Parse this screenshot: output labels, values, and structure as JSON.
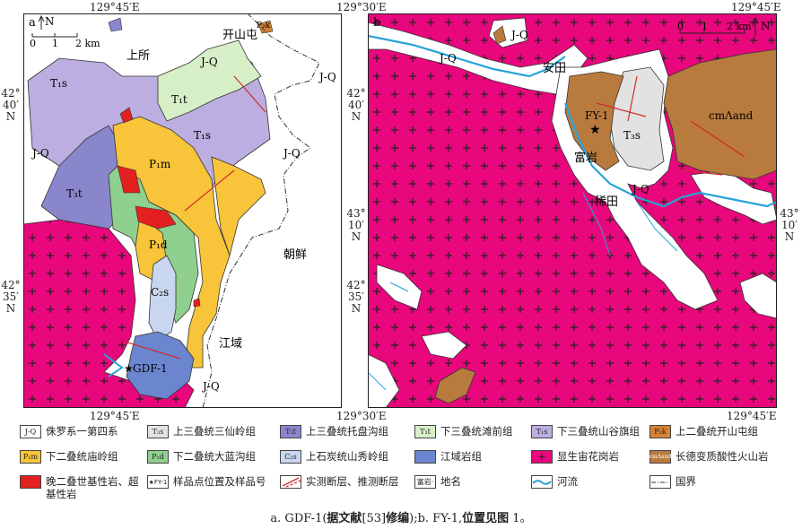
{
  "panel_a": {
    "label": "a",
    "top_coord": "129°45′E",
    "bottom_coord": "129°45′E",
    "left_coords": [
      {
        "deg": "42°",
        "min": "40′",
        "hem": "N"
      },
      {
        "deg": "42°",
        "min": "35′",
        "hem": "N"
      }
    ],
    "scale": {
      "zero": "0",
      "one": "1",
      "two": "2 km"
    },
    "north": "N",
    "places": {
      "shangsuo": "上所",
      "kaishantun": "开山屯",
      "chaoxian": "朝鲜",
      "jiangyu": "江域"
    },
    "units": {
      "jq": "J-Q",
      "t1s": "T₁s",
      "t1t": "T₁t",
      "t3t": "T₃t",
      "p1m": "P₁m",
      "p1d": "P₁d",
      "c2s": "C₂s",
      "p2k": "P₂k"
    },
    "sample": "GDF-1"
  },
  "panel_b": {
    "label": "b",
    "top_left_coord": "129°30′E",
    "top_right_coord": "129°45′E",
    "bottom_left_coord": "129°30′E",
    "bottom_right_coord": "129°45′E",
    "left_coords": [
      {
        "deg": "42°",
        "min": "40′",
        "hem": "N"
      },
      {
        "deg": "42°",
        "min": "35′",
        "hem": "N"
      }
    ],
    "right_coord": {
      "deg": "43°",
      "min": "10′",
      "hem": "N"
    },
    "left_mid_coord": {
      "deg": "43°",
      "min": "10′",
      "hem": "N"
    },
    "scale": {
      "zero": "0",
      "one": "1",
      "two": "2 km"
    },
    "north": "N",
    "places": {
      "antian": "安田",
      "fuyan": "富岩",
      "xitian": "稀田"
    },
    "units": {
      "jq": "J-Q",
      "t3s": "T₃s",
      "cmand": "cmΛand"
    },
    "sample": "FY-1"
  },
  "legend": {
    "items": [
      {
        "code": "J-Q",
        "label": "侏罗系一第四系",
        "color": "#ffffff"
      },
      {
        "code": "T₃s",
        "label": "上三叠统三仙岭组",
        "color": "#e2e2e2"
      },
      {
        "code": "T₃t",
        "label": "上三叠统托盘沟组",
        "color": "#8a86cc"
      },
      {
        "code": "T₁t",
        "label": "下三叠统滩前组",
        "color": "#d6efc6"
      },
      {
        "code": "T₁s",
        "label": "下三叠统山谷旗组",
        "color": "#bcaee0"
      },
      {
        "code": "P₂k",
        "label": "上二叠统开山屯组",
        "color": "#d68232"
      },
      {
        "code": "P₁m",
        "label": "下二叠统庙岭组",
        "color": "#f7c43a"
      },
      {
        "code": "P₁d",
        "label": "下二叠统大蓝沟组",
        "color": "#8fd08f"
      },
      {
        "code": "C₂s",
        "label": "上石炭统山秀岭组",
        "color": "#c8d6f0"
      },
      {
        "code": "",
        "label": "江域岩组",
        "color": "#6b86cf"
      },
      {
        "code": "+",
        "label": "显生宙花岗岩",
        "color": "#e8077c"
      },
      {
        "code": "cmΛand",
        "label": "长德变质酸性火山岩",
        "color": "#b97a3e"
      },
      {
        "code": "",
        "label": "晚二叠世基性岩、超基性岩",
        "color": "#e32020"
      },
      {
        "code": "★FY-1",
        "label": "样品点位置及样品号",
        "color": "#ffffff"
      },
      {
        "code": "",
        "label": "实测断层、推测断层",
        "color": "#ffffff"
      },
      {
        "code": "富岩·",
        "label": "地名",
        "color": "#ffffff"
      },
      {
        "code": "",
        "label": "河流",
        "color": "#ffffff"
      },
      {
        "code": "",
        "label": "国界",
        "color": "#ffffff"
      }
    ]
  },
  "caption": {
    "pre": "a. GDF-1(",
    "bold1": "据文献",
    "ref": "[53]",
    "bold2": "修编",
    "mid": ");b. FY-1,",
    "bold3": "位置见图",
    "post": " 1。"
  }
}
